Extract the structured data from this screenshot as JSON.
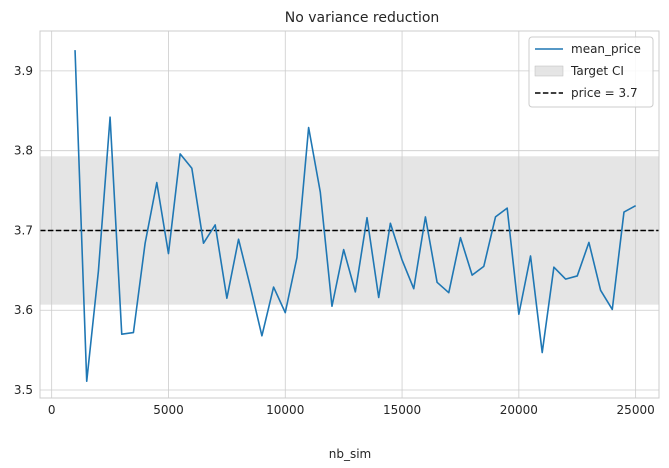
{
  "chart_data": {
    "type": "line",
    "title": "No variance reduction",
    "xlabel": "nb_sim",
    "ylabel": "",
    "xlim": [
      -500,
      26000
    ],
    "ylim": [
      3.49,
      3.95
    ],
    "xticks": [
      0,
      5000,
      10000,
      15000,
      20000,
      25000
    ],
    "xtick_labels": [
      "0",
      "5000",
      "10000",
      "15000",
      "20000",
      "25000"
    ],
    "yticks": [
      3.5,
      3.6,
      3.7,
      3.8,
      3.9
    ],
    "ytick_labels": [
      "3.5",
      "3.6",
      "3.7",
      "3.8",
      "3.9"
    ],
    "grid": true,
    "legend_position": "top-right",
    "series": [
      {
        "name": "mean_price",
        "color": "#1f77b4",
        "x": [
          1000,
          1500,
          2000,
          2500,
          3000,
          3500,
          4000,
          4500,
          5000,
          5500,
          6000,
          6500,
          7000,
          7500,
          8000,
          8500,
          9000,
          9500,
          10000,
          10500,
          11000,
          11500,
          12000,
          12500,
          13000,
          13500,
          14000,
          14500,
          15000,
          15500,
          16000,
          16500,
          17000,
          17500,
          18000,
          18500,
          19000,
          19500,
          20000,
          20500,
          21000,
          21500,
          22000,
          22500,
          23000,
          23500,
          24000,
          24500,
          25000
        ],
        "y": [
          3.926,
          3.511,
          3.649,
          3.842,
          3.57,
          3.572,
          3.684,
          3.76,
          3.671,
          3.796,
          3.778,
          3.684,
          3.707,
          3.615,
          3.689,
          3.63,
          3.568,
          3.629,
          3.597,
          3.666,
          3.829,
          3.748,
          3.605,
          3.676,
          3.623,
          3.716,
          3.616,
          3.709,
          3.663,
          3.627,
          3.717,
          3.635,
          3.622,
          3.691,
          3.644,
          3.655,
          3.717,
          3.728,
          3.595,
          3.668,
          3.547,
          3.654,
          3.639,
          3.643,
          3.685,
          3.625,
          3.601,
          3.723,
          3.731
        ]
      }
    ],
    "band": {
      "name": "Target CI",
      "y_low": 3.607,
      "y_high": 3.793,
      "color": "#d3d3d3"
    },
    "hline": {
      "name": "price = 3.7",
      "y": 3.7,
      "color": "#000000"
    },
    "legend": [
      "mean_price",
      "Target CI",
      "price = 3.7"
    ]
  }
}
